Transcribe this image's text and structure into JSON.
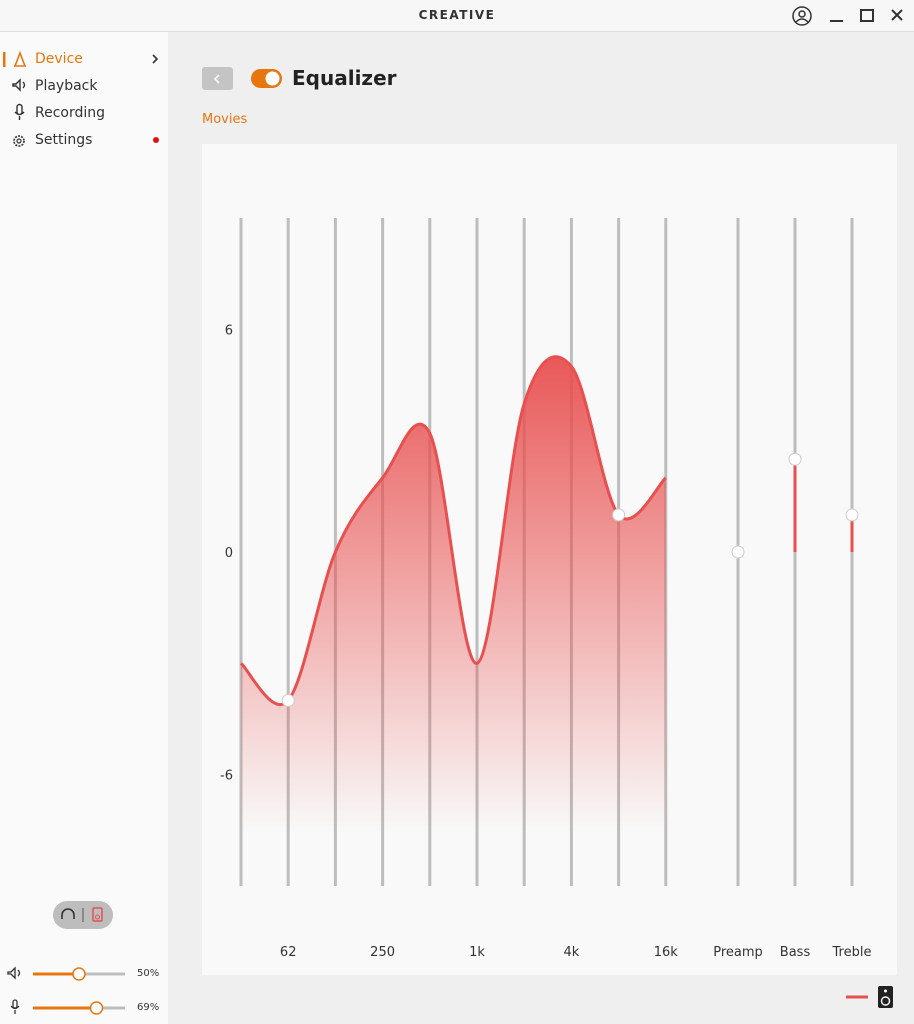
{
  "app_title": "CREATIVE",
  "nav": [
    "Device",
    "Playback",
    "Recording",
    "Settings"
  ],
  "page_title": "Equalizer",
  "preset": "Movies",
  "equalizer": {
    "ylim": [
      -9,
      9
    ],
    "yticks": [
      6,
      0,
      -6
    ],
    "color": "#e85050",
    "bands": {
      "labels": [
        null,
        "62",
        null,
        "250",
        null,
        "1k",
        null,
        "4k",
        null,
        "16k"
      ],
      "values": [
        -3,
        -4,
        0,
        2,
        3.2,
        -3,
        4,
        5,
        1,
        2
      ]
    },
    "extras": {
      "labels": [
        "Preamp",
        "Bass",
        "Treble"
      ],
      "values": [
        0,
        2.5,
        1
      ]
    }
  },
  "levels": [
    {
      "value": 50,
      "label": "50%"
    },
    {
      "value": 69,
      "label": "69%"
    }
  ]
}
